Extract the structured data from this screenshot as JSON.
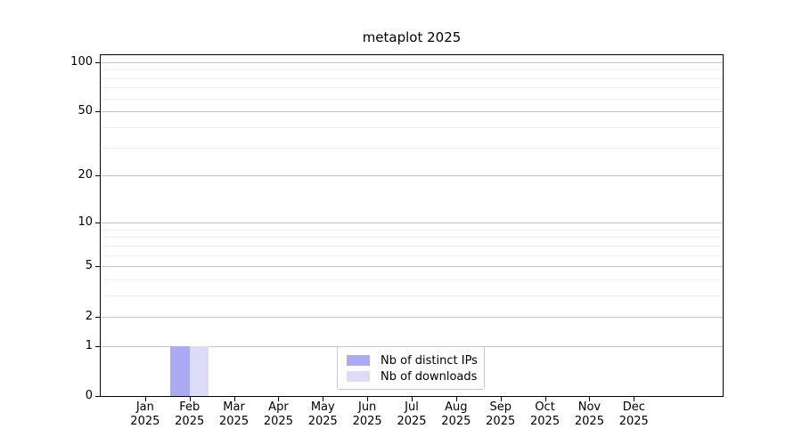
{
  "chart_data": {
    "type": "bar",
    "title": "metaplot 2025",
    "yscale": "log1p",
    "categories": [
      "Jan 2025",
      "Feb 2025",
      "Mar 2025",
      "Apr 2025",
      "May 2025",
      "Jun 2025",
      "Jul 2025",
      "Aug 2025",
      "Sep 2025",
      "Oct 2025",
      "Nov 2025",
      "Dec 2025"
    ],
    "series": [
      {
        "name": "Nb of distinct IPs",
        "color": "#aaaaf5",
        "values": [
          0,
          1,
          0,
          0,
          0,
          0,
          0,
          0,
          0,
          0,
          0,
          0
        ]
      },
      {
        "name": "Nb of downloads",
        "color": "#dcdcf8",
        "values": [
          0,
          1,
          0,
          0,
          0,
          0,
          0,
          0,
          0,
          0,
          0,
          0
        ]
      }
    ],
    "yticks": [
      0,
      1,
      2,
      5,
      10,
      20,
      50,
      100
    ],
    "minor_yticks": [
      3,
      4,
      6,
      7,
      8,
      9,
      30,
      40,
      60,
      70,
      80,
      90
    ],
    "ylim": [
      0,
      110
    ],
    "xlabel": "",
    "ylabel": "",
    "grid": "horizontal",
    "legend_position": "bottom-center",
    "colors": {
      "major_grid": "#c6c6c6",
      "minor_grid": "#ededed",
      "axis": "#000000",
      "background": "#ffffff"
    }
  }
}
